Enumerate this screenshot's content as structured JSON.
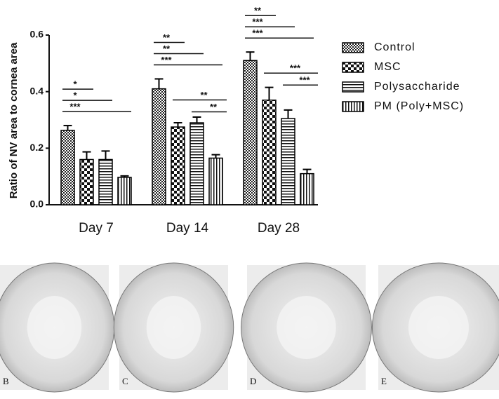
{
  "chart_data": {
    "type": "bar",
    "y_label": "Ratio of NV area to cornea area",
    "categories": [
      "Day 7",
      "Day 14",
      "Day 28"
    ],
    "series": [
      {
        "name": "Control",
        "color": "#000000",
        "pattern": "crosshatch",
        "values": [
          0.263,
          0.41,
          0.51
        ],
        "errors": [
          0.017,
          0.035,
          0.03
        ]
      },
      {
        "name": "MSC",
        "color": "#000000",
        "pattern": "checker",
        "values": [
          0.16,
          0.275,
          0.37
        ],
        "errors": [
          0.027,
          0.015,
          0.045
        ]
      },
      {
        "name": "Polysaccharide",
        "color": "#000000",
        "pattern": "horizontal",
        "values": [
          0.16,
          0.29,
          0.305
        ],
        "errors": [
          0.03,
          0.02,
          0.03
        ]
      },
      {
        "name": "PM (Poly+MSC)",
        "color": "#000000",
        "pattern": "vertical",
        "values": [
          0.097,
          0.165,
          0.11
        ],
        "errors": [
          0.005,
          0.012,
          0.015
        ]
      }
    ],
    "ylim": [
      0,
      0.6
    ],
    "yticks": [
      {
        "value": 0,
        "label": "0.0"
      },
      0.2,
      0.4,
      0.6
    ],
    "significance": [
      [
        {
          "label": "*",
          "pair": [
            0,
            1
          ]
        },
        {
          "label": "*",
          "pair": [
            0,
            2
          ]
        },
        {
          "label": "***",
          "pair": [
            0,
            3
          ]
        }
      ],
      [
        {
          "label": "**",
          "pair": [
            0,
            1
          ]
        },
        {
          "label": "**",
          "pair": [
            0,
            2
          ]
        },
        {
          "label": "***",
          "pair": [
            0,
            3
          ]
        },
        {
          "label": "**",
          "pair": [
            1,
            3
          ]
        },
        {
          "label": "**",
          "pair": [
            2,
            3
          ]
        }
      ],
      [
        {
          "label": "**",
          "pair": [
            0,
            1
          ]
        },
        {
          "label": "***",
          "pair": [
            0,
            2
          ]
        },
        {
          "label": "***",
          "pair": [
            0,
            3
          ]
        },
        {
          "label": "***",
          "pair": [
            1,
            3
          ]
        },
        {
          "label": "***",
          "pair": [
            2,
            3
          ]
        }
      ]
    ],
    "legend": "right"
  },
  "panels": [
    {
      "label": "B"
    },
    {
      "label": "C"
    },
    {
      "label": "D"
    },
    {
      "label": "E"
    }
  ]
}
